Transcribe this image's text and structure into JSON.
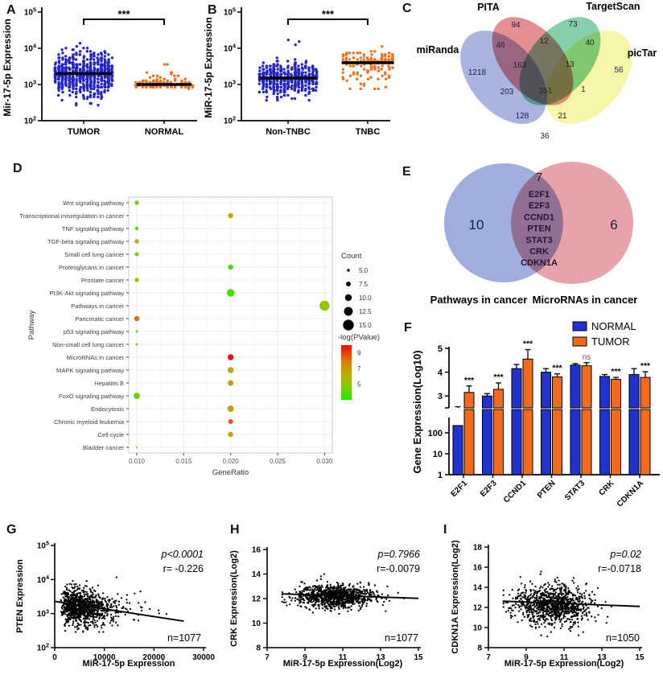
{
  "figure": {
    "background": "#ffffff"
  },
  "panels": {
    "A": {
      "letter": "A"
    },
    "B": {
      "letter": "B"
    },
    "C": {
      "letter": "C"
    },
    "D": {
      "letter": "D"
    },
    "E": {
      "letter": "E"
    },
    "F": {
      "letter": "F"
    },
    "G": {
      "letter": "G"
    },
    "H": {
      "letter": "H"
    },
    "I": {
      "letter": "I"
    }
  },
  "chart_data": [
    {
      "panel": "A",
      "type": "jitter",
      "ylabel": "Mir-17-5p Expression",
      "yscale": "log10",
      "ytick_exponents": [
        2,
        3,
        4,
        5
      ],
      "significance": "***",
      "groups": [
        {
          "label": "TUMOR",
          "color": "#2424cc",
          "n": 700,
          "median": 2000,
          "log10_mean": 3.31,
          "log10_sd": 0.27,
          "log10_range": [
            2.45,
            4.35
          ],
          "skew_low": 1.15,
          "n_outliers": 0,
          "outlier_log10_range": [
            0,
            0
          ]
        },
        {
          "label": "NORMAL",
          "color": "#f3701c",
          "n": 100,
          "median": 1000,
          "log10_mean": 3.0,
          "log10_sd": 0.07,
          "log10_range": [
            2.86,
            3.62
          ],
          "skew_low": 1.0,
          "n_outliers": 14,
          "outlier_log10_range": [
            3.12,
            3.6
          ]
        }
      ]
    },
    {
      "panel": "B",
      "type": "jitter",
      "ylabel": "MiR-17-5p Expression",
      "yscale": "log10",
      "ytick_exponents": [
        2,
        3,
        4,
        5
      ],
      "significance": "***",
      "groups": [
        {
          "label": "Non-TNBC",
          "color": "#2424cc",
          "n": 520,
          "median": 1500,
          "log10_mean": 3.19,
          "log10_sd": 0.21,
          "log10_range": [
            2.55,
            4.25
          ],
          "skew_low": 1.1,
          "n_outliers": 3,
          "outlier_log10_range": [
            3.9,
            4.25
          ]
        },
        {
          "label": "TNBC",
          "color": "#f3701c",
          "n": 150,
          "median": 4000,
          "log10_mean": 3.6,
          "log10_sd": 0.17,
          "log10_range": [
            2.9,
            4.52
          ],
          "skew_low": 1.9,
          "n_outliers": 0,
          "outlier_log10_range": [
            0,
            0
          ]
        }
      ]
    },
    {
      "panel": "C",
      "type": "venn4",
      "sets": [
        {
          "name": "miRanda",
          "color": "#8b97d1"
        },
        {
          "name": "PITA",
          "color": "#da646a"
        },
        {
          "name": "TargetScan",
          "color": "#57bd88"
        },
        {
          "name": "picTar",
          "color": "#f4f287"
        }
      ],
      "regions": {
        "miRanda_only": 1218,
        "PITA_only": 94,
        "TargetScan_only": 73,
        "picTar_only": 56,
        "miRanda_PITA": 46,
        "PITA_TargetScan": 12,
        "TargetScan_picTar": 40,
        "miRanda_PITA_TargetScan": 163,
        "PITA_TargetScan_picTar": 13,
        "miRanda_TargetScan": 203,
        "all_four": 351,
        "PITA_picTar": 1,
        "miRanda_TargetScan_picTar": 128,
        "miRanda_PITA_picTar": 21,
        "miRanda_picTar": 36
      }
    },
    {
      "panel": "D",
      "type": "bubble",
      "xlabel": "GeneRatio",
      "ylabel": "Pathway",
      "xticks": {
        "labels": [
          "0.010",
          "0.015",
          "0.020",
          "0.025",
          "0.030"
        ],
        "values": [
          0.01,
          0.015,
          0.02,
          0.025,
          0.03
        ]
      },
      "count_legend": {
        "title": "Count",
        "sizes": [
          "5.0",
          "7.5",
          "10.0",
          "12.5",
          "15.0"
        ],
        "size_values": [
          5,
          7.5,
          10,
          12.5,
          15
        ]
      },
      "color_legend": {
        "title": "-log(PValue)",
        "ticks": [
          "9",
          "7",
          "5"
        ],
        "tick_values": [
          9,
          7,
          5
        ]
      },
      "rows": [
        {
          "pathway": "Wnt signaling pathway",
          "gene_ratio": 0.01,
          "count": 7,
          "neg_log_pvalue": 4.5
        },
        {
          "pathway": "Transcriptional misregulation in cancer",
          "gene_ratio": 0.02,
          "count": 8,
          "neg_log_pvalue": 6.5
        },
        {
          "pathway": "TNF signaling pathway",
          "gene_ratio": 0.01,
          "count": 6,
          "neg_log_pvalue": 3.9
        },
        {
          "pathway": "TGF-beta signaling pathway",
          "gene_ratio": 0.01,
          "count": 7,
          "neg_log_pvalue": 6.3
        },
        {
          "pathway": "Small cell lung cancer",
          "gene_ratio": 0.01,
          "count": 6.5,
          "neg_log_pvalue": 5.0
        },
        {
          "pathway": "Proteoglycans in cancer",
          "gene_ratio": 0.02,
          "count": 8,
          "neg_log_pvalue": 3.6
        },
        {
          "pathway": "Prostate cancer",
          "gene_ratio": 0.01,
          "count": 7,
          "neg_log_pvalue": 6.2
        },
        {
          "pathway": "PI3K-Akt signaling pathway",
          "gene_ratio": 0.02,
          "count": 11,
          "neg_log_pvalue": 3.7
        },
        {
          "pathway": "Pathways in cancer",
          "gene_ratio": 0.03,
          "count": 14,
          "neg_log_pvalue": 5.2
        },
        {
          "pathway": "Pancreatic cancer",
          "gene_ratio": 0.01,
          "count": 8,
          "neg_log_pvalue": 8.2
        },
        {
          "pathway": "p53 signaling pathway",
          "gene_ratio": 0.01,
          "count": 4.5,
          "neg_log_pvalue": 4.2
        },
        {
          "pathway": "Non-small cell lung cancer",
          "gene_ratio": 0.01,
          "count": 4.5,
          "neg_log_pvalue": 4.2
        },
        {
          "pathway": "MicroRNAs in cancer",
          "gene_ratio": 0.02,
          "count": 9,
          "neg_log_pvalue": 10.0
        },
        {
          "pathway": "MAPK signaling pathway",
          "gene_ratio": 0.02,
          "count": 9,
          "neg_log_pvalue": 6.6
        },
        {
          "pathway": "Hepatitis B",
          "gene_ratio": 0.02,
          "count": 8.5,
          "neg_log_pvalue": 6.9
        },
        {
          "pathway": "FoxO signaling pathway",
          "gene_ratio": 0.01,
          "count": 9.5,
          "neg_log_pvalue": 4.3
        },
        {
          "pathway": "Endocytosis",
          "gene_ratio": 0.02,
          "count": 9.5,
          "neg_log_pvalue": 6.9
        },
        {
          "pathway": "Chronic myeloid leukemia",
          "gene_ratio": 0.02,
          "count": 7.5,
          "neg_log_pvalue": 8.6
        },
        {
          "pathway": "Cell cycle",
          "gene_ratio": 0.02,
          "count": 8,
          "neg_log_pvalue": 6.9
        },
        {
          "pathway": "Bladder cancer",
          "gene_ratio": 0.01,
          "count": 4,
          "neg_log_pvalue": 6.0
        }
      ]
    },
    {
      "panel": "E",
      "type": "venn2",
      "left": {
        "label": "Pathways in cancer",
        "only": 10,
        "color": "#93a2d8"
      },
      "right": {
        "label": "MicroRNAs in cancer",
        "only": 6,
        "color": "#e4939b"
      },
      "intersection": {
        "count": 7,
        "genes": [
          "E2F1",
          "E2F3",
          "CCND1",
          "PTEN",
          "STAT3",
          "CRK",
          "CDKN1A"
        ]
      }
    },
    {
      "panel": "F",
      "type": "grouped-bar",
      "ylabel": "Gene Expression(Log10)",
      "legend": [
        {
          "label": "NORMAL",
          "color": "#2133cc"
        },
        {
          "label": "TUMOR",
          "color": "#f26a1c"
        }
      ],
      "genes": [
        "E2F1",
        "E2F3",
        "CCND1",
        "PTEN",
        "STAT3",
        "CRK",
        "CDKN1A"
      ],
      "series": [
        {
          "name": "NORMAL",
          "color": "#2133cc",
          "log10_values": [
            2.35,
            3.0,
            4.15,
            4.0,
            4.3,
            3.82,
            3.9
          ],
          "errors": [
            0.2,
            0.1,
            0.17,
            0.15,
            0.06,
            0.08,
            0.25
          ]
        },
        {
          "name": "TUMOR",
          "color": "#f26a1c",
          "log10_values": [
            3.15,
            3.28,
            4.55,
            3.8,
            4.27,
            3.7,
            3.78
          ],
          "errors": [
            0.27,
            0.27,
            0.4,
            0.13,
            0.13,
            0.08,
            0.24
          ]
        }
      ],
      "significance": [
        "***",
        "***",
        "***",
        "***",
        "ns",
        "***",
        "***"
      ],
      "broken_axis": {
        "top_ticks": [
          3,
          4,
          5
        ],
        "top_range": [
          2.5,
          5
        ],
        "bottom_ticks": [
          1,
          10,
          100
        ]
      }
    },
    {
      "panel": "G",
      "type": "scatter-correlation",
      "xlabel": "MiR-17-5p Expression",
      "ylabel": "PTEN Expression",
      "xscale": "linear",
      "xlim": [
        0,
        30000
      ],
      "xticks": [
        "0",
        "10000",
        "20000",
        "30000"
      ],
      "yscale": "log10",
      "ytick_exponents": [
        2,
        3,
        4,
        5
      ],
      "annotations": {
        "p": "p<0.0001",
        "r": "r= -0.226",
        "n": "n=1077"
      },
      "cloud": {
        "n": 1000,
        "x_median": 5200,
        "x_logsd": 0.5,
        "x_range": [
          260,
          27000
        ],
        "y_log10_mean": 3.2,
        "y_log10_sd": 0.27,
        "y_log10_range": [
          2.46,
          4.52
        ],
        "slope_per_10k": -0.1
      },
      "trend": {
        "x": [
          100,
          26000
        ],
        "y": [
          2280,
          600
        ]
      }
    },
    {
      "panel": "H",
      "type": "scatter-correlation",
      "xlabel": "MiR-17-5p Expression(Log2)",
      "ylabel": "CRK Expression(Log2)",
      "xscale": "linear",
      "xlim": [
        7,
        15
      ],
      "xticks": [
        "7",
        "9",
        "11",
        "13",
        "15"
      ],
      "yscale": "linear",
      "ylim": [
        8,
        16
      ],
      "yticks": [
        "8",
        "10",
        "12",
        "14",
        "16"
      ],
      "annotations": {
        "p": "p=0.7966",
        "r": "r=-0.0079",
        "n": "n=1077"
      },
      "cloud": {
        "n": 1000,
        "x_mean": 10.55,
        "x_sd": 1.05,
        "x_range": [
          7.8,
          14.85
        ],
        "y_mean": 12.2,
        "y_sd": 0.48,
        "y_range": [
          9.0,
          14.1
        ],
        "slope": -0.02
      },
      "trend": {
        "x": [
          7.8,
          15
        ],
        "y": [
          12.38,
          12.02
        ]
      }
    },
    {
      "panel": "I",
      "type": "scatter-correlation",
      "xlabel": "MiR-17-5p Expression(Log2)",
      "ylabel": "CDKN1A Expression(Log2)",
      "xscale": "linear",
      "xlim": [
        7,
        15
      ],
      "xticks": [
        "7",
        "9",
        "11",
        "13",
        "15"
      ],
      "yscale": "linear",
      "ylim": [
        8,
        18
      ],
      "yticks": [
        "8",
        "10",
        "12",
        "14",
        "16",
        "18"
      ],
      "annotations": {
        "p": "p=0.02",
        "r": "r=-0.0718",
        "n": "n=1050"
      },
      "cloud": {
        "n": 1000,
        "x_mean": 10.45,
        "x_sd": 1.0,
        "x_range": [
          7.8,
          14.3
        ],
        "y_mean": 12.3,
        "y_sd": 0.95,
        "y_range": [
          8.2,
          16.0
        ],
        "slope": -0.07
      },
      "trend": {
        "x": [
          7.8,
          15
        ],
        "y": [
          12.62,
          12.1
        ]
      }
    }
  ]
}
